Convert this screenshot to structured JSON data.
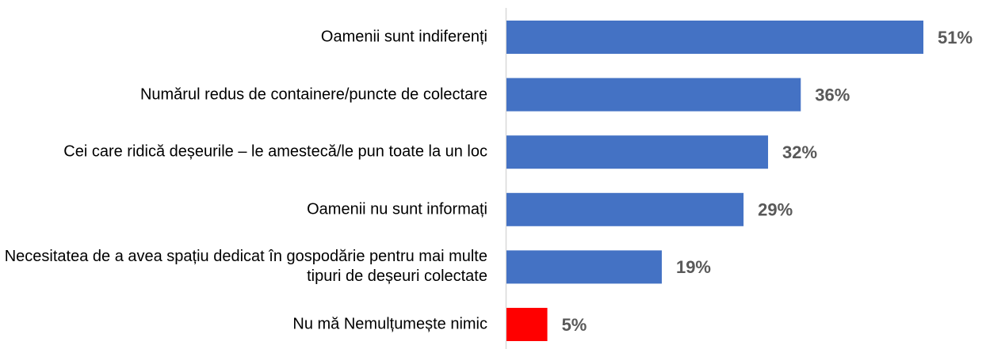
{
  "chart_data": {
    "type": "bar",
    "orientation": "horizontal",
    "categories": [
      "Oamenii sunt indiferenți",
      "Numărul redus de containere/puncte de colectare",
      "Cei care ridică deșeurile – le amestecă/le pun toate la un loc",
      "Oamenii nu sunt informați",
      "Necesitatea de a avea spațiu dedicat în gospodărie pentru mai multe tipuri de deșeuri colectate",
      "Nu mă Nemulțumește nimic"
    ],
    "values": [
      51,
      36,
      32,
      29,
      19,
      5
    ],
    "value_labels": [
      "51%",
      "36%",
      "32%",
      "29%",
      "19%",
      "5%"
    ],
    "colors": [
      "#4472c4",
      "#4472c4",
      "#4472c4",
      "#4472c4",
      "#4472c4",
      "#ff0000"
    ]
  }
}
